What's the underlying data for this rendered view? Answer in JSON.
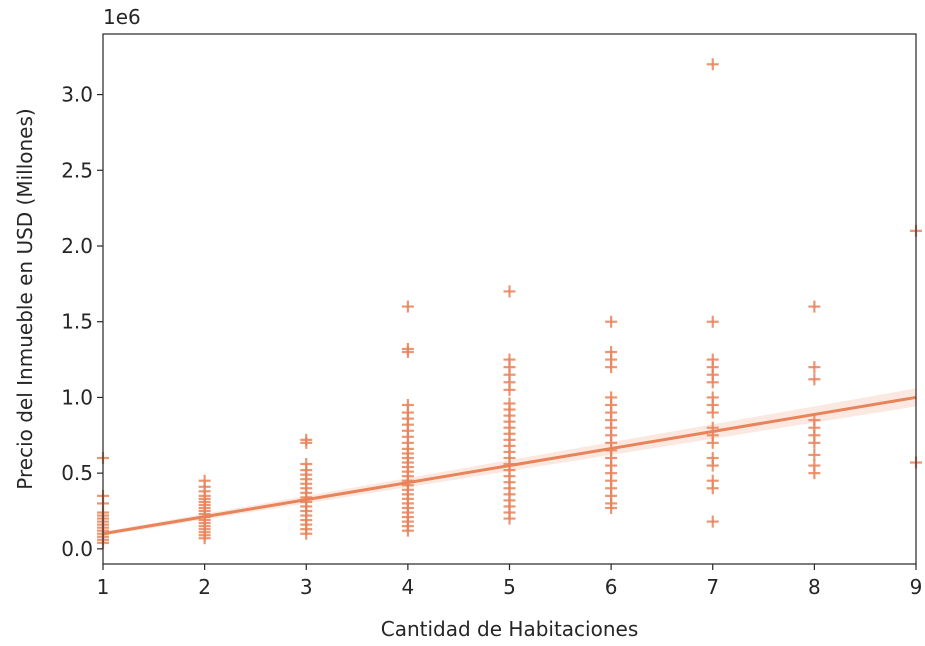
{
  "chart_data": {
    "type": "scatter",
    "xlabel": "Cantidad de Habitaciones",
    "ylabel": "Precio del Inmueble en USD (Millones)",
    "y_offset_text": "1e6",
    "xlim": [
      1,
      9
    ],
    "ylim": [
      -0.1,
      3.4
    ],
    "x_ticks": [
      1,
      2,
      3,
      4,
      5,
      6,
      7,
      8,
      9
    ],
    "y_ticks": [
      0.0,
      0.5,
      1.0,
      1.5,
      2.0,
      2.5,
      3.0
    ],
    "y_tick_labels": [
      "0.0",
      "0.5",
      "1.0",
      "1.5",
      "2.0",
      "2.5",
      "3.0"
    ],
    "grid": false,
    "marker": "plus",
    "color": "#e8835a",
    "points": [
      {
        "x": 1,
        "y": [
          0.04,
          0.06,
          0.08,
          0.1,
          0.12,
          0.14,
          0.16,
          0.18,
          0.2,
          0.22,
          0.24,
          0.3,
          0.35,
          0.6
        ]
      },
      {
        "x": 2,
        "y": [
          0.07,
          0.09,
          0.11,
          0.13,
          0.15,
          0.17,
          0.19,
          0.21,
          0.23,
          0.25,
          0.27,
          0.29,
          0.31,
          0.33,
          0.35,
          0.38,
          0.41,
          0.45
        ]
      },
      {
        "x": 3,
        "y": [
          0.1,
          0.13,
          0.16,
          0.19,
          0.22,
          0.25,
          0.28,
          0.31,
          0.34,
          0.37,
          0.4,
          0.43,
          0.46,
          0.49,
          0.52,
          0.56,
          0.7,
          0.72
        ]
      },
      {
        "x": 4,
        "y": [
          0.12,
          0.15,
          0.18,
          0.21,
          0.24,
          0.27,
          0.3,
          0.33,
          0.36,
          0.39,
          0.42,
          0.45,
          0.48,
          0.51,
          0.54,
          0.57,
          0.6,
          0.63,
          0.66,
          0.7,
          0.74,
          0.78,
          0.82,
          0.86,
          0.9,
          0.95,
          1.3,
          1.32,
          1.6
        ]
      },
      {
        "x": 5,
        "y": [
          0.2,
          0.24,
          0.28,
          0.32,
          0.36,
          0.4,
          0.44,
          0.48,
          0.52,
          0.56,
          0.6,
          0.64,
          0.68,
          0.72,
          0.76,
          0.8,
          0.84,
          0.88,
          0.92,
          0.96,
          1.05,
          1.1,
          1.15,
          1.2,
          1.25,
          1.7
        ]
      },
      {
        "x": 6,
        "y": [
          0.27,
          0.3,
          0.35,
          0.4,
          0.45,
          0.5,
          0.55,
          0.6,
          0.65,
          0.7,
          0.75,
          0.8,
          0.85,
          0.9,
          0.95,
          1.0,
          1.2,
          1.25,
          1.3,
          1.5
        ]
      },
      {
        "x": 7,
        "y": [
          0.18,
          0.4,
          0.45,
          0.55,
          0.6,
          0.7,
          0.75,
          0.8,
          0.9,
          0.95,
          1.0,
          1.1,
          1.15,
          1.2,
          1.25,
          1.5,
          3.2
        ]
      },
      {
        "x": 8,
        "y": [
          0.5,
          0.55,
          0.62,
          0.7,
          0.75,
          0.8,
          0.85,
          1.12,
          1.2,
          1.6
        ]
      },
      {
        "x": 9,
        "y": [
          0.57,
          2.1
        ]
      }
    ],
    "regression": {
      "x": [
        1,
        9
      ],
      "y": [
        0.1,
        1.0
      ]
    }
  }
}
